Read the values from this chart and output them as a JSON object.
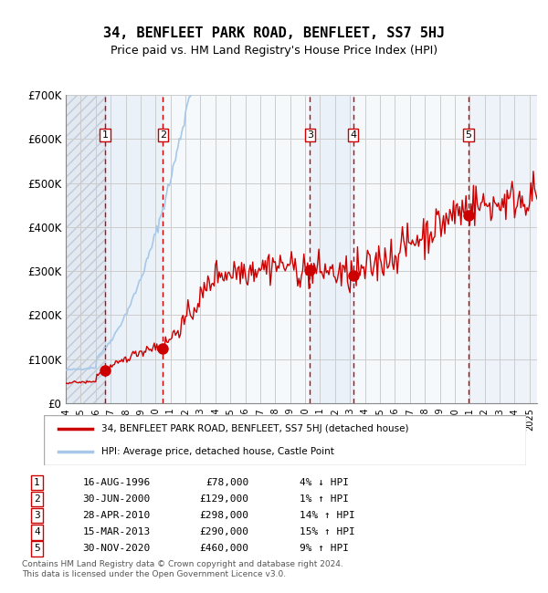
{
  "title": "34, BENFLEET PARK ROAD, BENFLEET, SS7 5HJ",
  "subtitle": "Price paid vs. HM Land Registry's House Price Index (HPI)",
  "transactions": [
    {
      "num": 1,
      "date": "16-AUG-1996",
      "year": 1996.62,
      "price": 78000,
      "pct": "4%",
      "dir": "↓"
    },
    {
      "num": 2,
      "date": "30-JUN-2000",
      "year": 2000.5,
      "price": 129000,
      "pct": "1%",
      "dir": "↑"
    },
    {
      "num": 3,
      "date": "28-APR-2010",
      "year": 2010.32,
      "price": 298000,
      "pct": "14%",
      "dir": "↑"
    },
    {
      "num": 4,
      "date": "15-MAR-2013",
      "year": 2013.21,
      "price": 290000,
      "pct": "15%",
      "dir": "↑"
    },
    {
      "num": 5,
      "date": "30-NOV-2020",
      "year": 2020.92,
      "price": 460000,
      "pct": "9%",
      "dir": "↑"
    }
  ],
  "hpi_color": "#a8c8e8",
  "price_color": "#cc0000",
  "marker_color": "#cc0000",
  "background_hatch_color": "#d0d8e8",
  "shaded_color": "#dde8f5",
  "grid_color": "#cccccc",
  "dashed_line_color": "#cc0000",
  "ylabel_values": [
    "£0",
    "£100K",
    "£200K",
    "£300K",
    "£400K",
    "£500K",
    "£600K",
    "£700K"
  ],
  "ylim": [
    0,
    700000
  ],
  "xlim_start": 1994.0,
  "xlim_end": 2025.5,
  "footer": "Contains HM Land Registry data © Crown copyright and database right 2024.\nThis data is licensed under the Open Government Licence v3.0.",
  "legend_label_price": "34, BENFLEET PARK ROAD, BENFLEET, SS7 5HJ (detached house)",
  "legend_label_hpi": "HPI: Average price, detached house, Castle Point"
}
